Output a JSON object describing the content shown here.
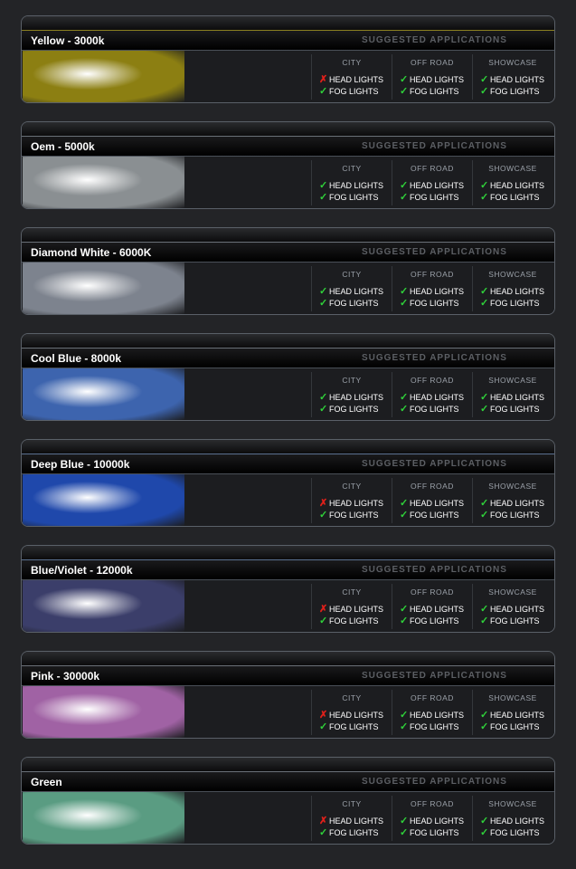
{
  "suggested_label": "SUGGESTED APPLICATIONS",
  "columns": [
    "CITY",
    "OFF ROAD",
    "SHOWCASE"
  ],
  "rows": [
    "HEAD LIGHTS",
    "FOG   LIGHTS"
  ],
  "panels": [
    {
      "title": "Yellow - 3000k",
      "color": "#8c7f12",
      "accent": "#8a8020",
      "city_head": false
    },
    {
      "title": "Oem - 5000k",
      "color": "#8a8f92",
      "accent": "#6a7078",
      "city_head": true
    },
    {
      "title": "Diamond White - 6000K",
      "color": "#7d838e",
      "accent": "#6a7078",
      "city_head": true
    },
    {
      "title": "Cool Blue - 8000k",
      "color": "#3d64ae",
      "accent": "#6a7078",
      "city_head": true
    },
    {
      "title": "Deep Blue - 10000k",
      "color": "#1f48ab",
      "accent": "#5a7090",
      "city_head": false
    },
    {
      "title": "Blue/Violet - 12000k",
      "color": "#3b3e6a",
      "accent": "#5a7090",
      "city_head": false
    },
    {
      "title": "Pink - 30000k",
      "color": "#a062a4",
      "accent": "#6a7078",
      "city_head": false
    },
    {
      "title": "Green",
      "color": "#5a9c82",
      "accent": "#6a7078",
      "city_head": false
    }
  ]
}
